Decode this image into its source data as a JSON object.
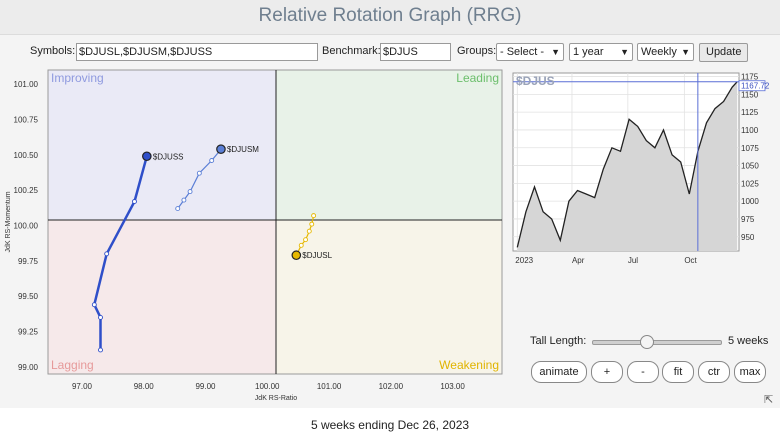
{
  "app": {
    "title": "Relative Rotation Graph (RRG)"
  },
  "controls": {
    "symbols_label": "Symbols:",
    "symbols_value": "$DJUSL,$DJUSM,$DJUSS",
    "benchmark_label": "Benchmark:",
    "benchmark_value": "$DJUS",
    "groups_label": "Groups:",
    "groups_value": "- Select -",
    "period_value": "1 year",
    "frequency_value": "Weekly",
    "update_label": "Update"
  },
  "rrg": {
    "quadrants": {
      "improving": "Improving",
      "leading": "Leading",
      "lagging": "Lagging",
      "weakening": "Weakening"
    },
    "x_axis_label": "JdK RS-Ratio",
    "y_axis_label": "JdK RS-Momentum",
    "x_ticks": [
      "97.00",
      "98.00",
      "99.00",
      "100.00",
      "101.00",
      "102.00",
      "103.00"
    ],
    "y_ticks": [
      "101.00",
      "100.75",
      "100.50",
      "100.25",
      "100.00",
      "99.75",
      "99.50",
      "99.25",
      "99.00"
    ],
    "series": [
      {
        "name": "$DJUSS",
        "color": "#2f4fc9",
        "points": [
          [
            97.3,
            99.12
          ],
          [
            97.3,
            99.35
          ],
          [
            97.2,
            99.44
          ],
          [
            97.4,
            99.8
          ],
          [
            97.85,
            100.17
          ],
          [
            98.05,
            100.49
          ]
        ]
      },
      {
        "name": "$DJUSM",
        "color": "#5b7fd6",
        "points": [
          [
            98.55,
            100.12
          ],
          [
            98.65,
            100.18
          ],
          [
            98.75,
            100.24
          ],
          [
            98.9,
            100.37
          ],
          [
            99.1,
            100.46
          ],
          [
            99.25,
            100.54
          ]
        ]
      },
      {
        "name": "$DJUSL",
        "color": "#e6b800",
        "points": [
          [
            100.75,
            100.07
          ],
          [
            100.72,
            100.01
          ],
          [
            100.68,
            99.96
          ],
          [
            100.62,
            99.9
          ],
          [
            100.55,
            99.86
          ],
          [
            100.47,
            99.79
          ]
        ]
      }
    ],
    "quadrant_colors": {
      "improving": "#eaeaf6",
      "leading": "#e8f2e8",
      "lagging": "#f6e9ea",
      "weakening": "#f7f4e9"
    }
  },
  "price_chart": {
    "symbol": "$DJUS",
    "last_value": "1167.72",
    "y_ticks": [
      "1175",
      "1150",
      "1125",
      "1100",
      "1075",
      "1050",
      "1025",
      "1000",
      "975",
      "950"
    ],
    "x_ticks": [
      "2023",
      "Apr",
      "Jul",
      "Oct"
    ]
  },
  "chart_data": {
    "type": "area",
    "title": "$DJUS",
    "x": [
      "2023-01-02",
      "2023-01-16",
      "2023-01-30",
      "2023-02-13",
      "2023-02-27",
      "2023-03-13",
      "2023-03-27",
      "2023-04-10",
      "2023-04-24",
      "2023-05-08",
      "2023-05-22",
      "2023-06-05",
      "2023-06-19",
      "2023-07-03",
      "2023-07-17",
      "2023-07-31",
      "2023-08-14",
      "2023-08-28",
      "2023-09-11",
      "2023-09-25",
      "2023-10-09",
      "2023-10-23",
      "2023-11-06",
      "2023-11-20",
      "2023-12-04",
      "2023-12-18",
      "2023-12-26"
    ],
    "values": [
      935,
      985,
      1020,
      985,
      975,
      945,
      1000,
      1015,
      1010,
      1005,
      1045,
      1075,
      1070,
      1115,
      1105,
      1085,
      1075,
      1100,
      1065,
      1055,
      1010,
      1070,
      1110,
      1130,
      1140,
      1160,
      1167.72
    ],
    "ylim": [
      930,
      1180
    ],
    "last_value": 1167.72
  },
  "tail_control": {
    "label": "Tall Length:",
    "value": 5,
    "max": 12,
    "unit_label": "5 weeks"
  },
  "action_buttons": [
    "animate",
    "+",
    "-",
    "fit",
    "ctr",
    "max"
  ],
  "footer": {
    "caption": "5 weeks ending Dec 26, 2023"
  }
}
